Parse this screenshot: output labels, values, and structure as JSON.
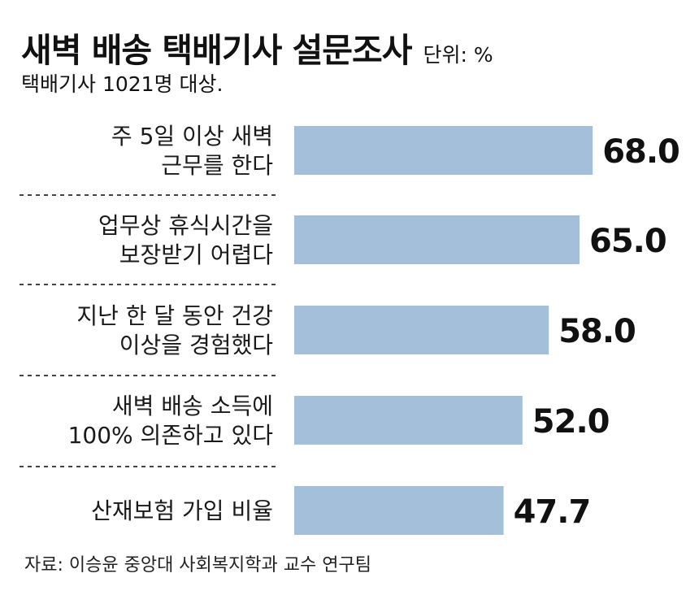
{
  "header": {
    "title": "새벽 배송 택배기사 설문조사",
    "unit": "단위: %",
    "subtitle": "택배기사 1021명 대상."
  },
  "chart_data": {
    "type": "bar",
    "orientation": "horizontal",
    "title": "새벽 배송 택배기사 설문조사",
    "unit": "%",
    "categories": [
      [
        "주 5일 이상 새벽",
        "근무를 한다"
      ],
      [
        "업무상 휴식시간을",
        "보장받기 어렵다"
      ],
      [
        "지난 한 달 동안 건강",
        "이상을 경험했다"
      ],
      [
        "새벽 배송 소득에",
        "100% 의존하고 있다"
      ],
      [
        "산재보험 가입 비율"
      ]
    ],
    "values": [
      68.0,
      65.0,
      58.0,
      52.0,
      47.7
    ],
    "value_labels": [
      "68.0",
      "65.0",
      "58.0",
      "52.0",
      "47.7"
    ],
    "bar_color": "#a3bfd9"
  },
  "footer": {
    "source": "자료: 이승윤 중앙대 사회복지학과 교수 연구팀"
  }
}
